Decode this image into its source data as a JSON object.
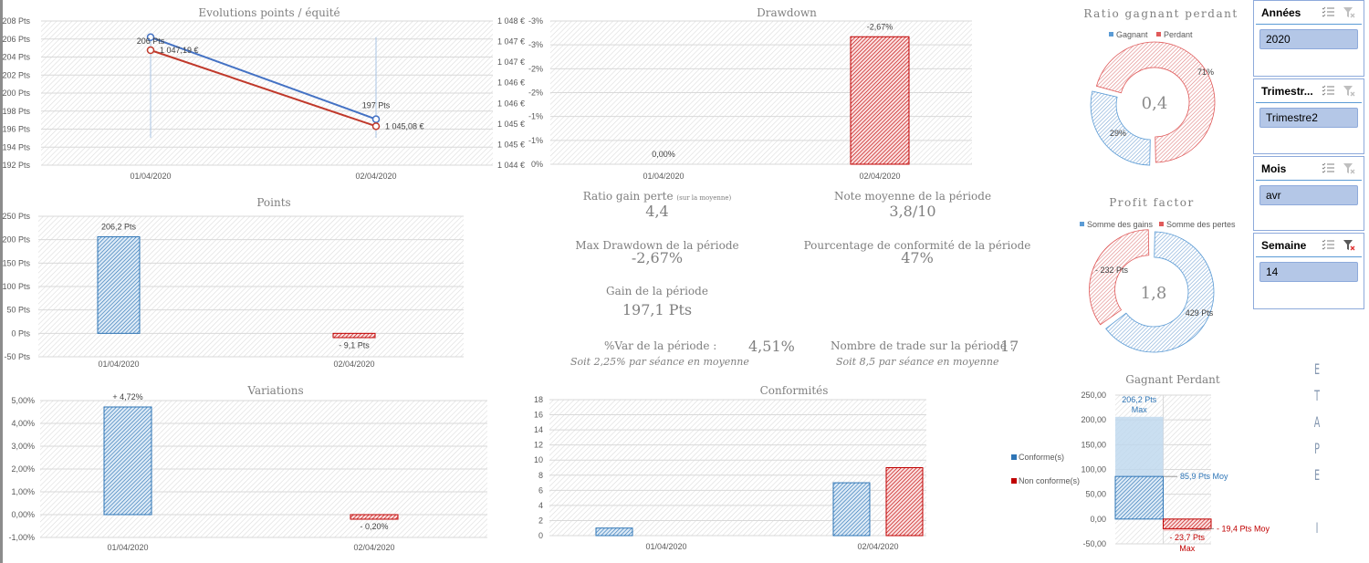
{
  "colors": {
    "blue": "#5b9bd5",
    "blue_dark": "#2e75b6",
    "red": "#e04040",
    "red_dark": "#c00000",
    "grid": "#d9d9d9",
    "text": "#595959",
    "slicer_fill": "#b4c7e7"
  },
  "charts": {
    "evolution": {
      "title": "Evolutions points / équité",
      "type": "line",
      "categories": [
        "01/04/2020",
        "02/04/2020"
      ],
      "y_left_ticks": [
        "208 Pts",
        "206 Pts",
        "204 Pts",
        "202 Pts",
        "200 Pts",
        "198 Pts",
        "196 Pts",
        "194 Pts",
        "192 Pts"
      ],
      "y_left_range": [
        192,
        208
      ],
      "y_right_ticks": [
        "1 048 €",
        "1 047 €",
        "1 047 €",
        "1 046 €",
        "1 046 €",
        "1 045 €",
        "1 045 €",
        "1 044 €"
      ],
      "y_right_range": [
        1044,
        1048
      ],
      "series": [
        {
          "name": "Points",
          "values": [
            206.2,
            197.1
          ],
          "labels": [
            "206 Pts",
            "197 Pts"
          ]
        },
        {
          "name": "Equité",
          "values": [
            1047.19,
            1045.08
          ],
          "labels": [
            "1 047,19 €",
            "1 045,08 €"
          ]
        }
      ]
    },
    "drawdown": {
      "title": "Drawdown",
      "type": "bar",
      "categories": [
        "01/04/2020",
        "02/04/2020"
      ],
      "values": [
        0.0,
        -2.67
      ],
      "labels": [
        "0,00%",
        "-2,67%"
      ],
      "y_ticks": [
        "-3%",
        "-3%",
        "-2%",
        "-2%",
        "-1%",
        "-1%",
        "0%"
      ],
      "y_range": [
        0,
        -3
      ]
    },
    "ratio": {
      "title": "Ratio gagnant perdant",
      "type": "pie",
      "legend": [
        "Gagnant",
        "Perdant"
      ],
      "values": [
        29,
        71
      ],
      "labels": [
        "29%",
        "71%"
      ],
      "center": "0,4"
    },
    "points": {
      "title": "Points",
      "type": "bar",
      "categories": [
        "01/04/2020",
        "02/04/2020"
      ],
      "values": [
        206.2,
        -9.1
      ],
      "labels": [
        "206,2 Pts",
        "- 9,1 Pts"
      ],
      "y_ticks": [
        "250 Pts",
        "200 Pts",
        "150 Pts",
        "100 Pts",
        "50 Pts",
        "0 Pts",
        "-50 Pts"
      ],
      "y_range": [
        -50,
        250
      ]
    },
    "profit": {
      "title": "Profit factor",
      "type": "pie",
      "legend": [
        "Somme des gains",
        "Somme des pertes"
      ],
      "values": [
        429,
        232
      ],
      "labels": [
        "429 Pts",
        "- 232 Pts"
      ],
      "center": "1,8"
    },
    "variations": {
      "title": "Variations",
      "type": "bar",
      "categories": [
        "01/04/2020",
        "02/04/2020"
      ],
      "values": [
        4.72,
        -0.2
      ],
      "labels": [
        "+ 4,72%",
        "- 0,20%"
      ],
      "y_ticks": [
        "5,00%",
        "4,00%",
        "3,00%",
        "2,00%",
        "1,00%",
        "0,00%",
        "-1,00%"
      ],
      "y_range": [
        -1,
        5
      ]
    },
    "conformites": {
      "title": "Conformités",
      "type": "bar",
      "categories": [
        "01/04/2020",
        "02/04/2020"
      ],
      "series": [
        {
          "name": "Conforme(s)",
          "values": [
            1,
            7
          ]
        },
        {
          "name": "Non conforme(s)",
          "values": [
            0,
            9
          ]
        }
      ],
      "y_ticks": [
        "18",
        "16",
        "14",
        "12",
        "10",
        "8",
        "6",
        "4",
        "2",
        "0"
      ],
      "y_range": [
        0,
        18
      ]
    },
    "gagnant_perdant": {
      "title": "Gagnant Perdant",
      "type": "bar",
      "y_ticks": [
        "250,00",
        "200,00",
        "150,00",
        "100,00",
        "50,00",
        "0,00",
        "-50,00"
      ],
      "y_range": [
        -50,
        250
      ],
      "gain_max": 206.2,
      "gain_moy": 85.9,
      "loss_max": -23.7,
      "loss_moy": -19.4,
      "labels": {
        "gain_max": "206,2 Pts",
        "gain_max_sub": "Max",
        "gain_moy": "85,9 Pts Moy",
        "loss_moy": "- 19,4 Pts Moy",
        "loss_max": "- 23,7 Pts",
        "loss_max_sub": "Max"
      }
    }
  },
  "chart_data": [
    {
      "type": "line",
      "title": "Evolutions points / équité",
      "x": [
        "01/04/2020",
        "02/04/2020"
      ],
      "series": [
        {
          "name": "Points",
          "values": [
            206.2,
            197.1
          ]
        },
        {
          "name": "Equité (€)",
          "values": [
            1047.19,
            1045.08
          ]
        }
      ],
      "ylim": [
        192,
        208
      ],
      "y2lim": [
        1044,
        1048
      ]
    },
    {
      "type": "bar",
      "title": "Drawdown",
      "categories": [
        "01/04/2020",
        "02/04/2020"
      ],
      "values": [
        0.0,
        -2.67
      ],
      "ylabel": "%"
    },
    {
      "type": "pie",
      "title": "Ratio gagnant perdant",
      "categories": [
        "Gagnant",
        "Perdant"
      ],
      "values": [
        29,
        71
      ]
    },
    {
      "type": "bar",
      "title": "Points",
      "categories": [
        "01/04/2020",
        "02/04/2020"
      ],
      "values": [
        206.2,
        -9.1
      ],
      "ylim": [
        -50,
        250
      ]
    },
    {
      "type": "pie",
      "title": "Profit factor",
      "categories": [
        "Somme des gains",
        "Somme des pertes"
      ],
      "values": [
        429,
        232
      ]
    },
    {
      "type": "bar",
      "title": "Variations",
      "categories": [
        "01/04/2020",
        "02/04/2020"
      ],
      "values": [
        4.72,
        -0.2
      ],
      "ylim": [
        -1,
        5
      ]
    },
    {
      "type": "bar",
      "title": "Conformités",
      "categories": [
        "01/04/2020",
        "02/04/2020"
      ],
      "series": [
        {
          "name": "Conforme(s)",
          "values": [
            1,
            7
          ]
        },
        {
          "name": "Non conforme(s)",
          "values": [
            0,
            9
          ]
        }
      ],
      "ylim": [
        0,
        18
      ],
      "legend": "right"
    },
    {
      "type": "bar",
      "title": "Gagnant Perdant",
      "categories": [
        "Gagnant",
        "Perdant"
      ],
      "series": [
        {
          "name": "Max",
          "values": [
            206.2,
            -23.7
          ]
        },
        {
          "name": "Moy",
          "values": [
            85.9,
            -19.4
          ]
        }
      ],
      "ylim": [
        -50,
        250
      ]
    }
  ],
  "kpis": {
    "ratio_gain_perte": {
      "label": "Ratio gain perte",
      "note": "(sur la moyenne)",
      "value": "4,4"
    },
    "note_moyenne": {
      "label": "Note moyenne de la période",
      "value": "3,8/10"
    },
    "max_drawdown": {
      "label": "Max Drawdown de la période",
      "value": "-2,67%"
    },
    "conformite": {
      "label": "Pourcentage de conformité de la période",
      "value": "47%"
    },
    "gain": {
      "label": "Gain de la période",
      "value": "197,1 Pts"
    },
    "var": {
      "label": "%Var de la période :",
      "value": "4,51%",
      "sub": "Soit 2,25% par séance en moyenne"
    },
    "trades": {
      "label": "Nombre de trade sur la période :",
      "value": "17",
      "sub": "Soit 8,5 par séance en moyenne"
    }
  },
  "slicers": [
    {
      "name": "Années",
      "selected": "2020",
      "filtered": false
    },
    {
      "name": "Trimestr...",
      "selected": "Trimestre2",
      "filtered": false
    },
    {
      "name": "Mois",
      "selected": "avr",
      "filtered": false
    },
    {
      "name": "Semaine",
      "selected": "14",
      "filtered": true
    }
  ],
  "etape": [
    "E",
    "T",
    "A",
    "P",
    "E",
    "",
    "I"
  ]
}
